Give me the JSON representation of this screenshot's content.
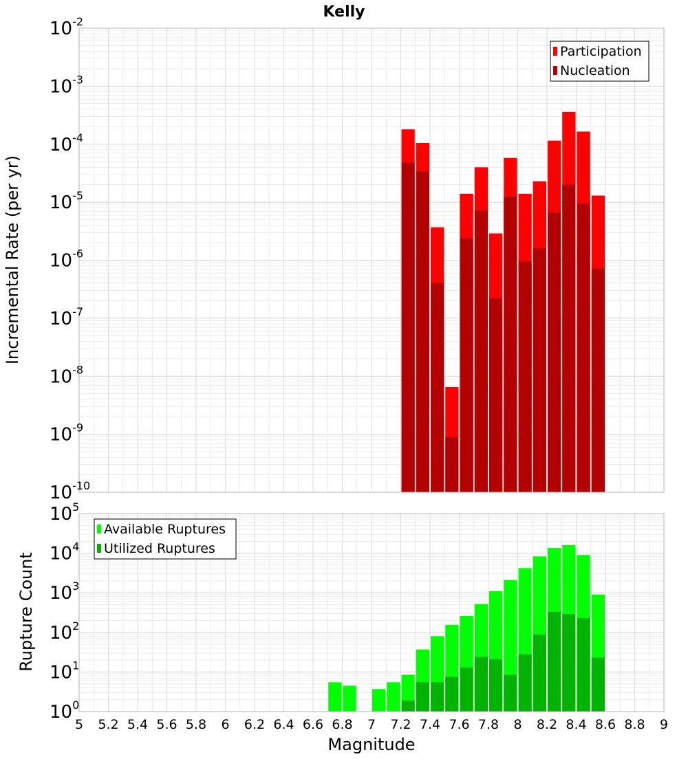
{
  "chart_data": [
    {
      "type": "bar",
      "title": "Kelly",
      "ylabel": "Incremental Rate (per yr)",
      "xlabel": "",
      "log_y": true,
      "ylim_exp": [
        -10,
        -2
      ],
      "xlim": [
        5,
        9
      ],
      "bin_width": 0.1,
      "x": [
        7.25,
        7.35,
        7.45,
        7.55,
        7.65,
        7.75,
        7.85,
        7.95,
        8.05,
        8.15,
        8.25,
        8.35,
        8.45,
        8.55
      ],
      "series": [
        {
          "name": "Participation",
          "color": "#ff0000",
          "values": [
            0.00018,
            0.000105,
            3.7e-06,
            6.5e-09,
            1.4e-05,
            4e-05,
            2.9e-06,
            5.8e-05,
            1.4e-05,
            2.3e-05,
            0.000115,
            0.00036,
            0.000165,
            1.3e-05
          ]
        },
        {
          "name": "Nucleation",
          "color": "#b30000",
          "values": [
            4.8e-05,
            3.4e-05,
            4e-07,
            9e-10,
            2.4e-06,
            7.2e-06,
            2.2e-07,
            1.25e-05,
            9.5e-07,
            1.6e-06,
            6.6e-06,
            2e-05,
            9.5e-06,
            7.2e-07
          ]
        }
      ],
      "legend_position": "top-right",
      "grid": true
    },
    {
      "type": "bar",
      "title": "",
      "ylabel": "Rupture Count",
      "xlabel": "Magnitude",
      "log_y": true,
      "ylim_exp": [
        0,
        5
      ],
      "xlim": [
        5,
        9
      ],
      "bin_width": 0.1,
      "x": [
        6.75,
        6.85,
        6.95,
        7.05,
        7.15,
        7.25,
        7.35,
        7.45,
        7.55,
        7.65,
        7.75,
        7.85,
        7.95,
        8.05,
        8.15,
        8.25,
        8.35,
        8.45,
        8.55
      ],
      "series": [
        {
          "name": "Available Ruptures",
          "color": "#00ff00",
          "values": [
            5.5,
            4.5,
            null,
            3.7,
            5.5,
            8.5,
            37,
            80,
            155,
            260,
            520,
            1100,
            2100,
            4200,
            8300,
            13500,
            16000,
            9000,
            900
          ]
        },
        {
          "name": "Utilized Ruptures",
          "color": "#00b300",
          "values": [
            null,
            null,
            null,
            null,
            null,
            1.9,
            5.5,
            5.5,
            7.5,
            13,
            24,
            21,
            8.5,
            28,
            88,
            330,
            290,
            230,
            23
          ]
        }
      ],
      "legend_position": "top-left",
      "grid": true
    }
  ],
  "x_tick_labels": [
    "5",
    "5.2",
    "5.4",
    "5.6",
    "5.8",
    "6",
    "6.2",
    "6.4",
    "6.6",
    "6.8",
    "7",
    "7.2",
    "7.4",
    "7.6",
    "7.8",
    "8",
    "8.2",
    "8.4",
    "8.6",
    "8.8",
    "9"
  ]
}
